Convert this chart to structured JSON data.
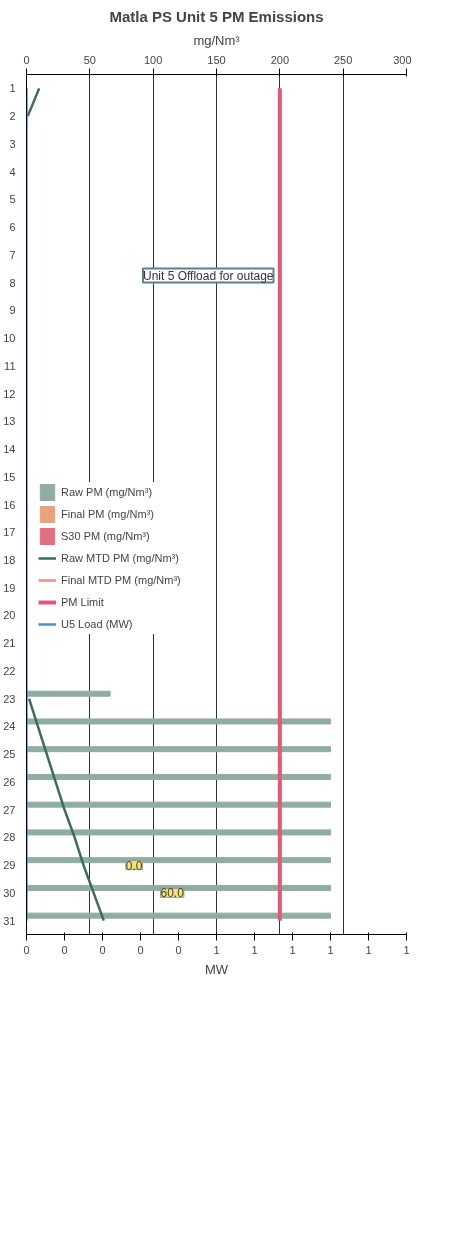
{
  "chart_data": {
    "type": "bar",
    "orientation": "horizontal",
    "title": "Matla PS Unit 5 PM Emissions",
    "xlabel": "mg/Nm³",
    "x2label": "MW",
    "categories": [
      "1",
      "2",
      "3",
      "4",
      "5",
      "6",
      "7",
      "8",
      "9",
      "10",
      "11",
      "12",
      "13",
      "14",
      "15",
      "16",
      "17",
      "18",
      "19",
      "20",
      "21",
      "22",
      "23",
      "24",
      "25",
      "26",
      "27",
      "28",
      "29",
      "30",
      "31"
    ],
    "xlim": [
      0,
      300
    ],
    "xticks": [
      0,
      50,
      100,
      150,
      200,
      250,
      300
    ],
    "x2lim": [
      0,
      1
    ],
    "x2ticks": [
      0,
      {
        "value": 0.1,
        "label": "0"
      },
      {
        "value": 0.2,
        "label": "0"
      },
      {
        "value": 0.3,
        "label": "0"
      },
      {
        "value": 0.4,
        "label": "0"
      },
      {
        "value": 0.5,
        "label": "1"
      },
      {
        "value": 0.6,
        "label": "1"
      },
      {
        "value": 0.7,
        "label": "1"
      },
      {
        "value": 0.8,
        "label": "1"
      },
      {
        "value": 0.9,
        "label": "1"
      },
      1
    ],
    "grid": "x",
    "legend": "left",
    "series": [
      {
        "name": "Raw PM (mg/Nm³)",
        "color": "#8fada0",
        "values": [
          null,
          null,
          null,
          null,
          null,
          null,
          null,
          null,
          null,
          null,
          null,
          null,
          null,
          null,
          null,
          null,
          null,
          null,
          null,
          null,
          null,
          null,
          66,
          240,
          240,
          240,
          240,
          240,
          240,
          240,
          240
        ]
      },
      {
        "name": "Final PM (mg/Nm³)",
        "color": "#e8a27c",
        "values": [
          null,
          null,
          null,
          null,
          null,
          null,
          null,
          null,
          null,
          null,
          null,
          null,
          null,
          null,
          null,
          null,
          null,
          null,
          null,
          null,
          null,
          null,
          null,
          null,
          null,
          null,
          null,
          null,
          null,
          null,
          null
        ]
      },
      {
        "name": "S30 PM (mg/Nm³)",
        "color": "#e07080",
        "values": [
          null,
          null,
          null,
          null,
          null,
          null,
          null,
          null,
          null,
          null,
          null,
          null,
          null,
          null,
          null,
          null,
          null,
          null,
          null,
          null,
          null,
          null,
          null,
          null,
          null,
          null,
          null,
          null,
          null,
          null,
          null
        ]
      },
      {
        "name": "Raw MTD PM (mg/Nm³)",
        "type": "line",
        "color": "#3d6b5a",
        "values": [
          10,
          1,
          null,
          null,
          null,
          null,
          null,
          null,
          null,
          null,
          null,
          null,
          null,
          null,
          null,
          null,
          null,
          null,
          null,
          null,
          null,
          null,
          2,
          9,
          16,
          23,
          30,
          38,
          45,
          53,
          61
        ]
      },
      {
        "name": "Final MTD PM (mg/Nm³)",
        "type": "line",
        "color": "#e8908c",
        "values": [
          null,
          null,
          null,
          null,
          null,
          null,
          null,
          null,
          null,
          null,
          null,
          null,
          null,
          null,
          null,
          null,
          null,
          null,
          null,
          null,
          null,
          null,
          null,
          null,
          null,
          null,
          null,
          null,
          null,
          null,
          null
        ]
      },
      {
        "name": "PM Limit",
        "type": "line",
        "color": "#e05a78",
        "values": [
          200,
          200,
          200,
          200,
          200,
          200,
          200,
          200,
          200,
          200,
          200,
          200,
          200,
          200,
          200,
          200,
          200,
          200,
          200,
          200,
          200,
          200,
          200,
          200,
          200,
          200,
          200,
          200,
          200,
          200,
          200
        ]
      },
      {
        "name": "U5 Load (MW)",
        "type": "line",
        "axis": "x2",
        "color": "#4a8fd8",
        "values": [
          0,
          0,
          0,
          0,
          0,
          0,
          0,
          0,
          0,
          0,
          0,
          0,
          0,
          0,
          0,
          0,
          0,
          0,
          0,
          0,
          0,
          0,
          0,
          0,
          0,
          0,
          0,
          0,
          0,
          0,
          0
        ]
      }
    ],
    "annotations": [
      "Unit 5 Offload for outage",
      {
        "text": "0.0",
        "x": 85,
        "y": "29"
      },
      {
        "text": "60.0",
        "x": 115,
        "y": "30"
      }
    ]
  }
}
